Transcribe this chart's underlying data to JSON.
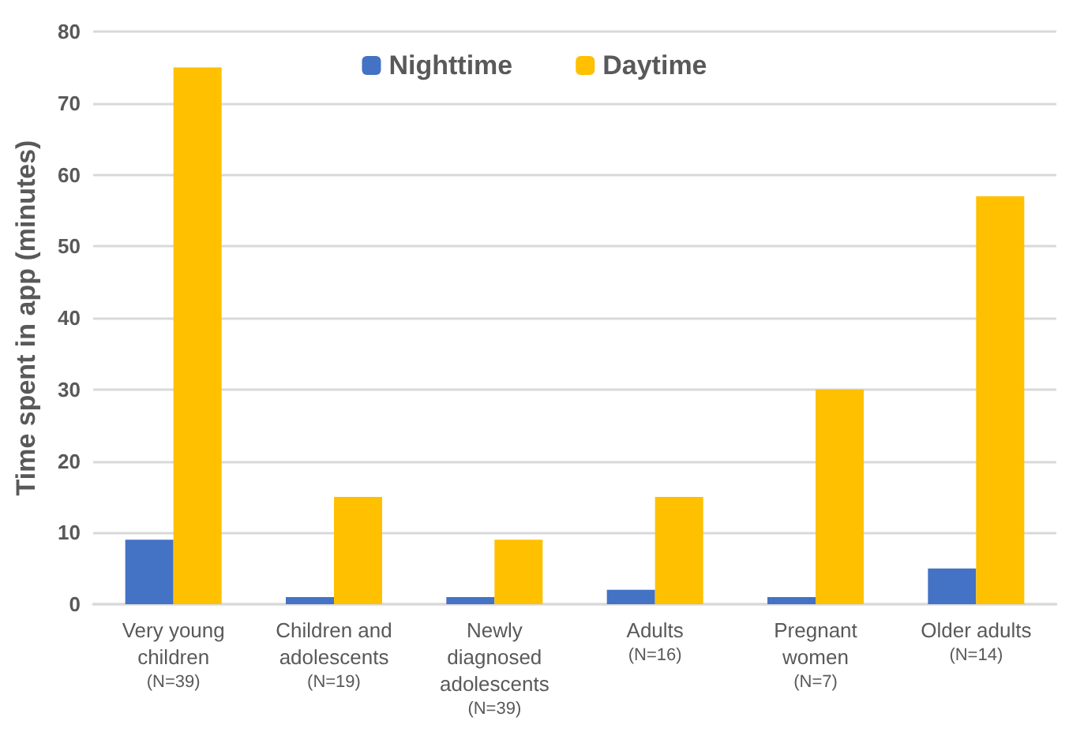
{
  "chart_data": {
    "type": "bar",
    "ylabel": "Time spent in app (minutes)",
    "categories": [
      "Very young\nchildren\n(N=39)",
      "Children and\nadolescents\n(N=19)",
      "Newly\ndiagnosed\nadolescents\n(N=39)",
      "Adults\n(N=16)",
      "Pregnant\nwomen\n(N=7)",
      "Older adults\n(N=14)"
    ],
    "series": [
      {
        "name": "Nighttime",
        "color": "#4472c4",
        "values": [
          9,
          1,
          1,
          2,
          1,
          5
        ]
      },
      {
        "name": "Daytime",
        "color": "#ffc000",
        "values": [
          75,
          15,
          9,
          15,
          30,
          57
        ]
      }
    ],
    "ylim": [
      0,
      80
    ],
    "yticks": [
      0,
      10,
      20,
      30,
      40,
      50,
      60,
      70,
      80
    ],
    "grid": "y",
    "legend": "top"
  }
}
